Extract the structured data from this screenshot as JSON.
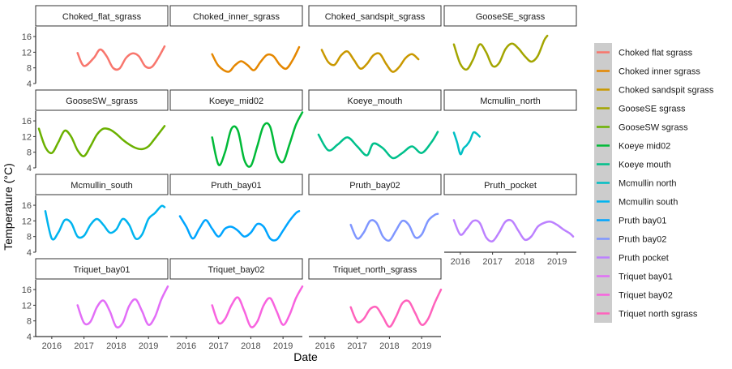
{
  "chart_data": {
    "type": "line",
    "title": "",
    "xlabel": "Date",
    "ylabel": "Temperature (°C)",
    "x_ticks": [
      "2016",
      "2017",
      "2018",
      "2019"
    ],
    "y_ticks": [
      4,
      8,
      12,
      16
    ],
    "ylim": [
      4,
      18.5
    ],
    "xlim": [
      2015.5,
      2019.6
    ],
    "legend_position": "right",
    "facets": [
      {
        "strip": "Choked_flat_sgrass",
        "series": "Choked flat sgrass",
        "color": "#F8766D",
        "x": [
          2016.8,
          2017.0,
          2017.3,
          2017.5,
          2017.7,
          2017.9,
          2018.1,
          2018.3,
          2018.5,
          2018.7,
          2018.9,
          2019.1,
          2019.3,
          2019.5
        ],
        "y": [
          11.8,
          8.5,
          10.5,
          12.7,
          11.0,
          8.0,
          7.8,
          10.5,
          11.7,
          11.0,
          8.4,
          8.2,
          10.5,
          13.5
        ]
      },
      {
        "strip": "Choked_inner_sgrass",
        "series": "Choked inner sgrass",
        "color": "#E58700",
        "x": [
          2016.8,
          2017.0,
          2017.3,
          2017.5,
          2017.7,
          2017.9,
          2018.1,
          2018.3,
          2018.5,
          2018.7,
          2018.9,
          2019.1,
          2019.3,
          2019.5
        ],
        "y": [
          11.5,
          8.5,
          7.0,
          8.6,
          9.7,
          8.7,
          7.4,
          9.5,
          11.3,
          11.0,
          8.8,
          7.8,
          10.0,
          13.3
        ]
      },
      {
        "strip": "Choked_sandspit_sgrass",
        "series": "Choked sandspit sgrass",
        "color": "#C99800",
        "x": [
          2015.9,
          2016.1,
          2016.3,
          2016.5,
          2016.7,
          2016.9,
          2017.1,
          2017.3,
          2017.5,
          2017.7,
          2017.9,
          2018.1,
          2018.3,
          2018.5,
          2018.7,
          2018.9
        ],
        "y": [
          12.6,
          9.5,
          8.8,
          11.2,
          12.2,
          10.0,
          7.8,
          9.0,
          11.2,
          11.6,
          9.0,
          7.0,
          8.2,
          10.5,
          11.5,
          10.2
        ]
      },
      {
        "strip": "GooseSE_sgrass",
        "series": "GooseSE sgrass",
        "color": "#A3A500",
        "x": [
          2015.8,
          2016.0,
          2016.2,
          2016.4,
          2016.6,
          2016.8,
          2017.0,
          2017.2,
          2017.4,
          2017.6,
          2017.8,
          2018.0,
          2018.2,
          2018.4,
          2018.6,
          2018.7
        ],
        "y": [
          14.0,
          9.0,
          7.6,
          10.2,
          14.0,
          12.0,
          8.5,
          9.2,
          12.8,
          14.2,
          13.0,
          11.0,
          9.6,
          11.0,
          15.0,
          16.2
        ]
      },
      {
        "strip": "GooseSW_sgrass",
        "series": "GooseSW sgrass",
        "color": "#6BB100",
        "x": [
          2015.6,
          2015.8,
          2016.0,
          2016.2,
          2016.4,
          2016.6,
          2016.8,
          2017.0,
          2017.2,
          2017.4,
          2017.6,
          2017.8,
          2018.0,
          2018.2,
          2018.4,
          2018.6,
          2018.8,
          2019.0,
          2019.2,
          2019.5
        ],
        "y": [
          14.0,
          9.3,
          7.8,
          10.5,
          13.5,
          12.0,
          8.5,
          7.0,
          9.5,
          12.5,
          14.0,
          13.8,
          12.7,
          11.2,
          10.0,
          9.1,
          8.8,
          9.5,
          11.5,
          14.7
        ]
      },
      {
        "strip": "Koeye_mid02",
        "series": "Koeye mid02",
        "color": "#00BA38",
        "x": [
          2016.8,
          2017.0,
          2017.2,
          2017.4,
          2017.6,
          2017.8,
          2018.0,
          2018.2,
          2018.4,
          2018.6,
          2018.8,
          2019.0,
          2019.2,
          2019.4,
          2019.6
        ],
        "y": [
          11.8,
          4.8,
          8.0,
          14.0,
          13.5,
          6.0,
          4.5,
          9.5,
          14.8,
          14.5,
          7.5,
          5.5,
          10.0,
          15.0,
          18.2
        ]
      },
      {
        "strip": "Koeye_mouth",
        "series": "Koeye mouth",
        "color": "#00C08B",
        "x": [
          2015.8,
          2016.1,
          2016.4,
          2016.7,
          2017.0,
          2017.3,
          2017.5,
          2017.8,
          2018.1,
          2018.4,
          2018.7,
          2019.0,
          2019.3,
          2019.5
        ],
        "y": [
          12.5,
          8.5,
          10.0,
          11.8,
          9.5,
          7.2,
          10.2,
          9.0,
          6.5,
          7.8,
          9.5,
          7.8,
          10.5,
          13.2
        ]
      },
      {
        "strip": "Mcmullin_north",
        "series": "Mcmullin north",
        "color": "#00BFC4",
        "x": [
          2015.8,
          2015.9,
          2016.0,
          2016.1,
          2016.2,
          2016.3,
          2016.4,
          2016.5,
          2016.6
        ],
        "y": [
          13.0,
          10.5,
          7.5,
          9.0,
          9.8,
          11.0,
          13.0,
          12.8,
          12.0
        ]
      },
      {
        "strip": "Mcmullin_south",
        "series": "Mcmullin south",
        "color": "#00B4EF",
        "x": [
          2015.8,
          2016.0,
          2016.2,
          2016.4,
          2016.6,
          2016.8,
          2017.0,
          2017.2,
          2017.4,
          2017.6,
          2017.8,
          2018.0,
          2018.2,
          2018.4,
          2018.6,
          2018.8,
          2019.0,
          2019.2,
          2019.4,
          2019.5
        ],
        "y": [
          14.5,
          7.5,
          9.0,
          12.2,
          11.5,
          8.0,
          8.2,
          11.0,
          12.5,
          11.0,
          9.0,
          9.8,
          12.5,
          11.0,
          7.5,
          8.5,
          12.5,
          14.0,
          15.8,
          15.5
        ]
      },
      {
        "strip": "Pruth_bay01",
        "series": "Pruth bay01",
        "color": "#00A5FF",
        "x": [
          2015.8,
          2016.0,
          2016.2,
          2016.4,
          2016.6,
          2016.8,
          2017.0,
          2017.2,
          2017.4,
          2017.6,
          2017.8,
          2018.0,
          2018.2,
          2018.4,
          2018.6,
          2018.8,
          2019.0,
          2019.2,
          2019.4,
          2019.5
        ],
        "y": [
          13.2,
          10.5,
          7.5,
          10.0,
          12.2,
          10.0,
          8.0,
          10.0,
          10.5,
          9.5,
          8.0,
          9.0,
          11.2,
          10.5,
          7.5,
          7.2,
          9.5,
          12.0,
          14.0,
          14.5
        ]
      },
      {
        "strip": "Pruth_bay02",
        "series": "Pruth bay02",
        "color": "#7F96FF",
        "x": [
          2016.8,
          2017.0,
          2017.2,
          2017.4,
          2017.6,
          2017.8,
          2018.0,
          2018.2,
          2018.4,
          2018.6,
          2018.8,
          2019.0,
          2019.2,
          2019.4,
          2019.5
        ],
        "y": [
          11.0,
          7.5,
          9.0,
          12.0,
          11.5,
          8.0,
          7.0,
          9.5,
          12.0,
          11.0,
          7.8,
          8.5,
          12.0,
          13.5,
          13.8
        ]
      },
      {
        "strip": "Pruth_pocket",
        "series": "Pruth pocket",
        "color": "#BC81FF",
        "x": [
          2015.8,
          2016.0,
          2016.2,
          2016.4,
          2016.6,
          2016.8,
          2017.0,
          2017.2,
          2017.4,
          2017.6,
          2017.8,
          2018.0,
          2018.2,
          2018.4,
          2018.6,
          2018.8,
          2019.0,
          2019.2,
          2019.4,
          2019.5
        ],
        "y": [
          12.2,
          8.5,
          10.0,
          12.0,
          11.5,
          7.8,
          6.8,
          9.0,
          11.8,
          12.0,
          9.5,
          7.2,
          8.0,
          10.5,
          11.5,
          11.8,
          11.0,
          9.8,
          8.8,
          8.0
        ]
      },
      {
        "strip": "Triquet_bay01",
        "series": "Triquet bay01",
        "color": "#E26EF7",
        "x": [
          2016.8,
          2017.0,
          2017.2,
          2017.4,
          2017.6,
          2017.8,
          2018.0,
          2018.2,
          2018.4,
          2018.6,
          2018.8,
          2019.0,
          2019.2,
          2019.4,
          2019.6
        ],
        "y": [
          12.0,
          7.5,
          7.8,
          11.5,
          13.2,
          10.5,
          6.5,
          7.5,
          11.8,
          13.5,
          10.5,
          7.0,
          9.0,
          13.5,
          16.8
        ]
      },
      {
        "strip": "Triquet_bay02",
        "series": "Triquet bay02",
        "color": "#F863DF",
        "x": [
          2016.8,
          2017.0,
          2017.2,
          2017.4,
          2017.6,
          2017.8,
          2018.0,
          2018.2,
          2018.4,
          2018.6,
          2018.8,
          2019.0,
          2019.2,
          2019.4,
          2019.6
        ],
        "y": [
          12.0,
          7.5,
          8.5,
          12.0,
          14.0,
          10.5,
          6.5,
          7.8,
          12.0,
          13.8,
          10.5,
          7.0,
          9.5,
          13.8,
          16.8
        ]
      },
      {
        "strip": "Triquet_north_sgrass",
        "series": "Triquet north sgrass",
        "color": "#FF62BC",
        "x": [
          2016.8,
          2017.0,
          2017.2,
          2017.4,
          2017.6,
          2017.8,
          2018.0,
          2018.2,
          2018.4,
          2018.6,
          2018.8,
          2019.0,
          2019.2,
          2019.4,
          2019.6
        ],
        "y": [
          11.5,
          7.8,
          8.5,
          11.0,
          11.5,
          9.0,
          6.5,
          9.0,
          12.5,
          13.0,
          10.0,
          7.0,
          8.5,
          12.5,
          16.0
        ]
      }
    ]
  }
}
